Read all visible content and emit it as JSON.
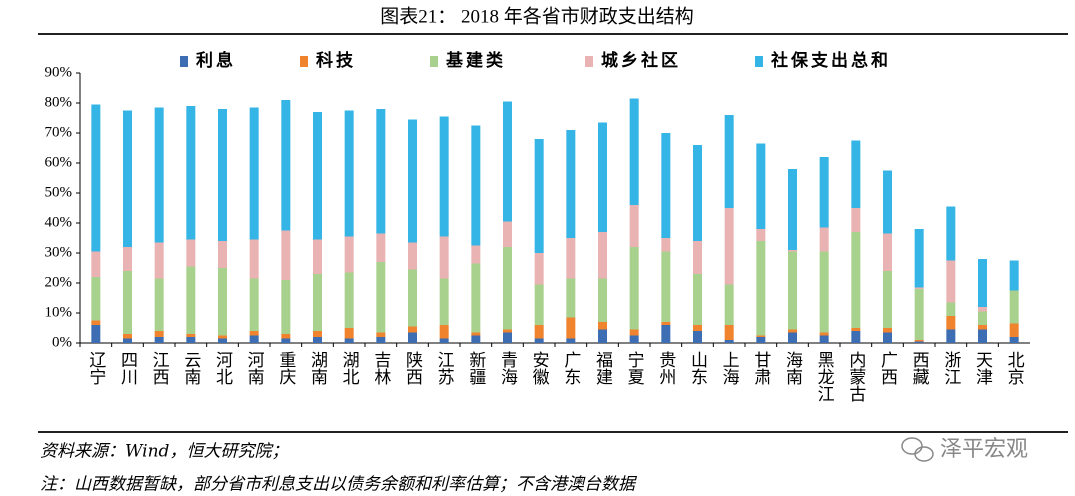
{
  "chart_data": {
    "type": "stacked_bar",
    "title": "图表21：   2018 年各省市财政支出结构",
    "categories": [
      "辽宁",
      "四川",
      "江西",
      "云南",
      "河北",
      "河南",
      "重庆",
      "湖南",
      "湖北",
      "吉林",
      "陕西",
      "江苏",
      "新疆",
      "青海",
      "安徽",
      "广东",
      "福建",
      "宁夏",
      "贵州",
      "山东",
      "上海",
      "甘肃",
      "海南",
      "黑龙江",
      "内蒙古",
      "广西",
      "西藏",
      "浙江",
      "天津",
      "北京"
    ],
    "series": [
      {
        "name": "利息",
        "color": "#3d6db3",
        "values": [
          6,
          1.5,
          2,
          2,
          1.5,
          2.5,
          1.5,
          2,
          1.5,
          2,
          3.5,
          1.5,
          2.5,
          3.5,
          1.5,
          1.5,
          4.5,
          2.5,
          6,
          4,
          1,
          2,
          3.5,
          2.5,
          4,
          3.5,
          0.5,
          4.5,
          4.5,
          2
        ]
      },
      {
        "name": "科技",
        "color": "#f0832e",
        "values": [
          1.5,
          1.5,
          2,
          1,
          1,
          1.5,
          1.5,
          2,
          3.5,
          1.5,
          2,
          4.5,
          1,
          1,
          4.5,
          7,
          2.5,
          2,
          1,
          2,
          5,
          0.5,
          1,
          1,
          1,
          1.5,
          0.5,
          4.5,
          1.5,
          4.5
        ]
      },
      {
        "name": "基建类",
        "color": "#a9d18e",
        "values": [
          14.5,
          21,
          17.5,
          22.5,
          22.5,
          17.5,
          18,
          19,
          18.5,
          23.5,
          19,
          15.5,
          23,
          27.5,
          13.5,
          13,
          14.5,
          27.5,
          23.5,
          17,
          13.5,
          31.5,
          26,
          27,
          32,
          19,
          17,
          4.5,
          4.5,
          11
        ]
      },
      {
        "name": "城乡社区",
        "color": "#e9b3b3",
        "values": [
          8.5,
          8,
          12,
          9,
          9,
          13,
          16.5,
          11.5,
          12,
          9.5,
          9,
          14,
          6,
          8.5,
          10.5,
          13.5,
          15.5,
          14,
          4.5,
          11,
          25.5,
          4,
          0.5,
          8,
          8,
          12.5,
          0.5,
          14,
          1.5,
          0
        ]
      },
      {
        "name": "社保支出总和",
        "color": "#35b4e6",
        "values": [
          49,
          45.5,
          45,
          44.5,
          44,
          44,
          43.5,
          42.5,
          42,
          41.5,
          41,
          40,
          40,
          40,
          38,
          36,
          36.5,
          35.5,
          35,
          32,
          31,
          28.5,
          27,
          23.5,
          22.5,
          21,
          19.5,
          18,
          16,
          10
        ]
      }
    ],
    "ylim": [
      0,
      90
    ],
    "yticks": [
      {
        "value": 0,
        "label": "0%"
      },
      {
        "value": 10,
        "label": "10%"
      },
      {
        "value": 20,
        "label": "20%"
      },
      {
        "value": 30,
        "label": "30%"
      },
      {
        "value": 40,
        "label": "40%"
      },
      {
        "value": 50,
        "label": "50%"
      },
      {
        "value": 60,
        "label": "60%"
      },
      {
        "value": 70,
        "label": "70%"
      },
      {
        "value": 80,
        "label": "80%"
      },
      {
        "value": 90,
        "label": "90%"
      }
    ],
    "legend": "top",
    "source": "资料来源：Wind，恒大研究院；",
    "note": "注：山西数据暂缺，部分省市利息支出以债务余额和利率估算；不含港澳台数据",
    "watermark": "泽平宏观"
  }
}
